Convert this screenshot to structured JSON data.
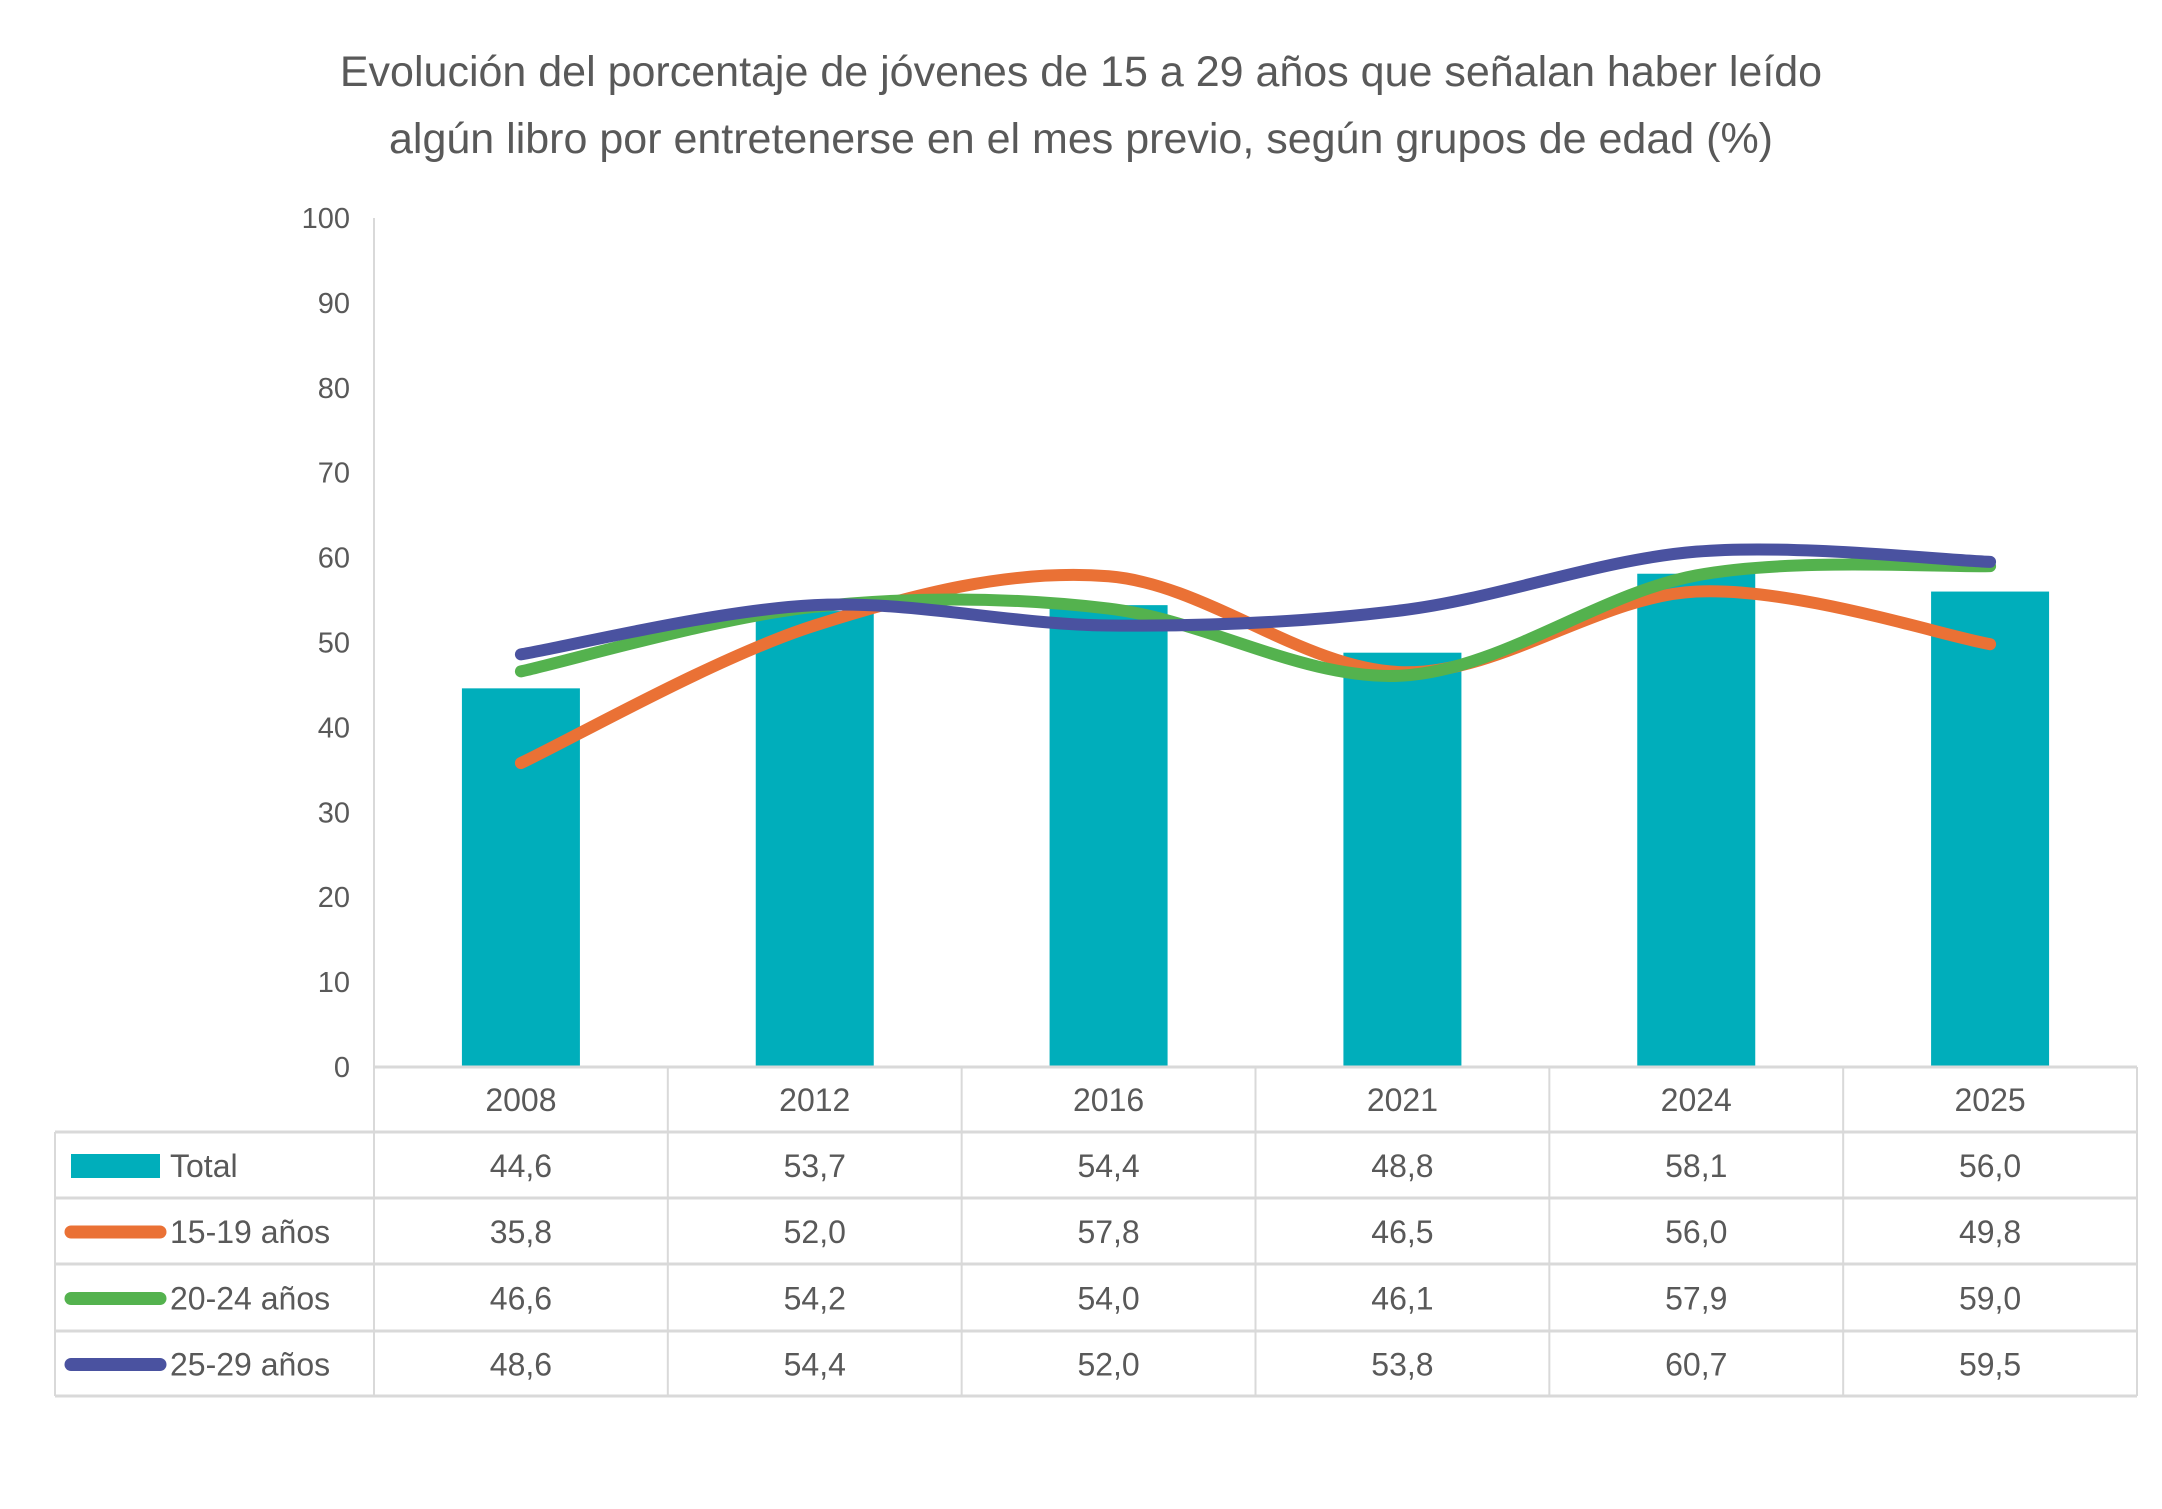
{
  "chart_data": {
    "type": "bar+line",
    "title": [
      "Evolución del porcentaje de jóvenes de 15 a 29 años que señalan haber leído",
      "algún libro por entretenerse en el mes previo, según grupos de edad (%)"
    ],
    "categories": [
      "2008",
      "2012",
      "2016",
      "2021",
      "2024",
      "2025"
    ],
    "ylim": [
      0,
      100
    ],
    "yticks": [
      "0",
      "10",
      "20",
      "30",
      "40",
      "50",
      "60",
      "70",
      "80",
      "90",
      "100"
    ],
    "grid": false,
    "legend": "data-table",
    "series": [
      {
        "name": "Total",
        "kind": "bar",
        "color": "#00AEBB",
        "values": [
          44.6,
          53.7,
          54.4,
          48.8,
          58.1,
          56.0
        ],
        "labels": [
          "44,6",
          "53,7",
          "54,4",
          "48,8",
          "58,1",
          "56,0"
        ]
      },
      {
        "name": "15-19 años",
        "kind": "line",
        "color": "#EA7135",
        "values": [
          35.8,
          52.0,
          57.8,
          46.5,
          56.0,
          49.8
        ],
        "labels": [
          "35,8",
          "52,0",
          "57,8",
          "46,5",
          "56,0",
          "49,8"
        ]
      },
      {
        "name": "20-24 años",
        "kind": "line",
        "color": "#54B24E",
        "values": [
          46.6,
          54.2,
          54.0,
          46.1,
          57.9,
          59.0
        ],
        "labels": [
          "46,6",
          "54,2",
          "54,0",
          "46,1",
          "57,9",
          "59,0"
        ]
      },
      {
        "name": "25-29 años",
        "kind": "line",
        "color": "#4A52A0",
        "values": [
          48.6,
          54.4,
          52.0,
          53.8,
          60.7,
          59.5
        ],
        "labels": [
          "48,6",
          "54,4",
          "52,0",
          "53,8",
          "60,7",
          "59,5"
        ]
      }
    ]
  }
}
